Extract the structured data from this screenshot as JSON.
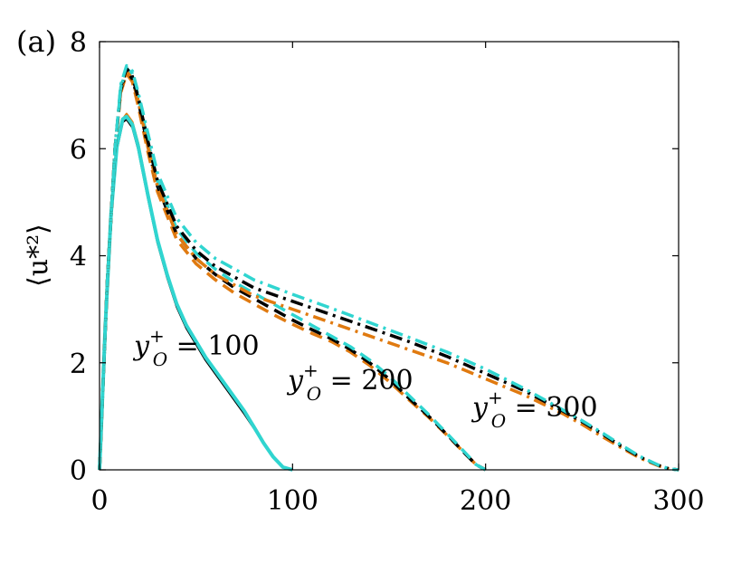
{
  "chart_data": {
    "type": "line",
    "panel_label": "(a)",
    "ylabel": "⟨u*²⟩",
    "xlim": [
      0,
      300
    ],
    "ylim": [
      0,
      8
    ],
    "xticks": [
      0,
      100,
      200,
      300
    ],
    "yticks": [
      0,
      2,
      4,
      6,
      8
    ],
    "grid": false,
    "colors": {
      "black": "#000000",
      "orange": "#e07a10",
      "cyan": "#30d5d0"
    },
    "annotations": [
      {
        "text": "y",
        "sup": "+",
        "sub": "O",
        "tail": " = 100"
      },
      {
        "text": "y",
        "sup": "+",
        "sub": "O",
        "tail": " = 200"
      },
      {
        "text": "y",
        "sup": "+",
        "sub": "O",
        "tail": " = 300"
      }
    ],
    "series": [
      {
        "group": 100,
        "color": "orange",
        "style": "solid",
        "width": 2.5,
        "x": [
          0,
          3,
          6,
          9,
          12,
          14,
          17,
          20,
          25,
          30,
          35,
          40,
          45,
          50,
          55,
          60,
          65,
          70,
          75,
          80,
          85,
          90,
          95,
          100
        ],
        "y": [
          0,
          2.7,
          4.8,
          6.0,
          6.55,
          6.65,
          6.5,
          6.1,
          5.2,
          4.3,
          3.65,
          3.1,
          2.7,
          2.4,
          2.1,
          1.85,
          1.6,
          1.35,
          1.1,
          0.82,
          0.52,
          0.25,
          0.06,
          0
        ]
      },
      {
        "group": 100,
        "color": "black",
        "style": "solid",
        "width": 2.5,
        "x": [
          0,
          3,
          6,
          9,
          12,
          14,
          17,
          20,
          25,
          30,
          35,
          40,
          45,
          50,
          55,
          60,
          65,
          70,
          75,
          80,
          85,
          90,
          95,
          100
        ],
        "y": [
          0,
          2.7,
          4.8,
          6.0,
          6.5,
          6.55,
          6.4,
          6.0,
          5.1,
          4.25,
          3.6,
          3.05,
          2.65,
          2.35,
          2.05,
          1.8,
          1.55,
          1.3,
          1.05,
          0.78,
          0.5,
          0.24,
          0.05,
          0
        ]
      },
      {
        "group": 100,
        "color": "cyan",
        "style": "solid",
        "width": 4,
        "x": [
          0,
          3,
          6,
          9,
          12,
          14,
          17,
          20,
          25,
          30,
          35,
          40,
          45,
          50,
          55,
          60,
          65,
          70,
          75,
          80,
          85,
          90,
          95,
          100
        ],
        "y": [
          0,
          2.7,
          4.8,
          6.05,
          6.55,
          6.6,
          6.45,
          6.05,
          5.15,
          4.3,
          3.65,
          3.1,
          2.7,
          2.4,
          2.1,
          1.85,
          1.6,
          1.35,
          1.1,
          0.8,
          0.5,
          0.24,
          0.05,
          0
        ]
      },
      {
        "group": 200,
        "color": "orange",
        "style": "dash",
        "width": 3.5,
        "x": [
          0,
          4,
          8,
          11,
          14,
          17,
          20,
          25,
          30,
          40,
          50,
          60,
          70,
          80,
          90,
          100,
          110,
          120,
          130,
          140,
          150,
          160,
          170,
          180,
          190,
          195,
          200
        ],
        "y": [
          0,
          3.5,
          6.0,
          7.05,
          7.4,
          7.25,
          6.8,
          5.95,
          5.2,
          4.3,
          3.85,
          3.55,
          3.3,
          3.1,
          2.9,
          2.72,
          2.55,
          2.4,
          2.2,
          1.95,
          1.65,
          1.32,
          1.0,
          0.65,
          0.28,
          0.1,
          0
        ]
      },
      {
        "group": 200,
        "color": "black",
        "style": "dash",
        "width": 3.5,
        "x": [
          0,
          4,
          8,
          11,
          14,
          17,
          20,
          25,
          30,
          40,
          50,
          60,
          70,
          80,
          90,
          100,
          110,
          120,
          130,
          140,
          150,
          160,
          170,
          180,
          190,
          195,
          200
        ],
        "y": [
          0,
          3.5,
          6.0,
          7.1,
          7.45,
          7.3,
          6.9,
          6.05,
          5.3,
          4.4,
          3.95,
          3.65,
          3.4,
          3.2,
          3.0,
          2.8,
          2.62,
          2.45,
          2.25,
          2.0,
          1.7,
          1.35,
          1.02,
          0.66,
          0.28,
          0.1,
          0
        ]
      },
      {
        "group": 200,
        "color": "cyan",
        "style": "dash",
        "width": 3.5,
        "x": [
          0,
          4,
          8,
          11,
          14,
          17,
          20,
          25,
          30,
          40,
          50,
          60,
          70,
          80,
          90,
          100,
          110,
          120,
          130,
          140,
          150,
          160,
          170,
          180,
          190,
          195,
          200
        ],
        "y": [
          0,
          3.5,
          6.0,
          7.15,
          7.5,
          7.4,
          7.0,
          6.15,
          5.4,
          4.5,
          4.05,
          3.75,
          3.5,
          3.3,
          3.1,
          2.9,
          2.7,
          2.5,
          2.3,
          2.05,
          1.75,
          1.4,
          1.05,
          0.68,
          0.3,
          0.1,
          0
        ]
      },
      {
        "group": 300,
        "color": "orange",
        "style": "dashdot",
        "width": 3.5,
        "x": [
          0,
          4,
          8,
          11,
          14,
          17,
          20,
          25,
          30,
          40,
          50,
          60,
          80,
          100,
          120,
          140,
          160,
          180,
          200,
          220,
          240,
          250,
          260,
          270,
          280,
          290,
          295,
          300
        ],
        "y": [
          0,
          3.5,
          6.0,
          7.1,
          7.45,
          7.3,
          6.9,
          6.05,
          5.3,
          4.4,
          3.95,
          3.65,
          3.25,
          3.0,
          2.75,
          2.5,
          2.25,
          2.0,
          1.7,
          1.4,
          1.05,
          0.85,
          0.63,
          0.42,
          0.22,
          0.07,
          0.02,
          0
        ]
      },
      {
        "group": 300,
        "color": "black",
        "style": "dashdot",
        "width": 3.5,
        "x": [
          0,
          4,
          8,
          11,
          14,
          17,
          20,
          25,
          30,
          40,
          50,
          60,
          80,
          100,
          120,
          140,
          160,
          180,
          200,
          220,
          240,
          250,
          260,
          270,
          280,
          290,
          295,
          300
        ],
        "y": [
          0,
          3.5,
          6.0,
          7.15,
          7.5,
          7.35,
          6.95,
          6.15,
          5.4,
          4.55,
          4.1,
          3.8,
          3.4,
          3.15,
          2.9,
          2.65,
          2.4,
          2.12,
          1.8,
          1.48,
          1.1,
          0.9,
          0.68,
          0.45,
          0.24,
          0.08,
          0.02,
          0
        ]
      },
      {
        "group": 300,
        "color": "cyan",
        "style": "dashdot",
        "width": 3.5,
        "x": [
          0,
          4,
          8,
          11,
          14,
          17,
          20,
          25,
          30,
          40,
          50,
          60,
          80,
          100,
          120,
          140,
          160,
          180,
          200,
          220,
          240,
          250,
          260,
          270,
          280,
          290,
          295,
          300
        ],
        "y": [
          0,
          3.5,
          6.0,
          7.2,
          7.55,
          7.45,
          7.05,
          6.3,
          5.55,
          4.7,
          4.25,
          3.95,
          3.55,
          3.28,
          3.02,
          2.75,
          2.48,
          2.2,
          1.88,
          1.52,
          1.12,
          0.92,
          0.7,
          0.47,
          0.25,
          0.08,
          0.02,
          0
        ]
      }
    ]
  }
}
